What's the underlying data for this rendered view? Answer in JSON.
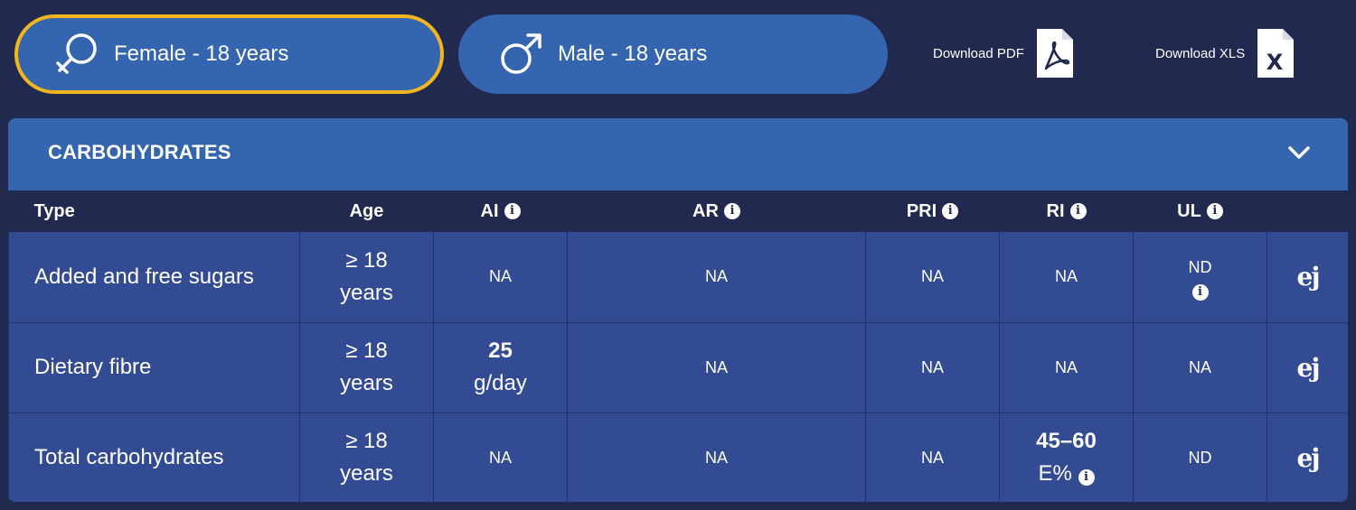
{
  "top": {
    "female_label": "Female - 18 years",
    "male_label": "Male - 18 years",
    "download_pdf": "Download PDF",
    "download_xls": "Download XLS",
    "xls_glyph": "X"
  },
  "panel": {
    "title": "CARBOHYDRATES",
    "expand_icon": "chevron-down-icon"
  },
  "table": {
    "headers": {
      "type": "Type",
      "age": "Age",
      "ai": "AI",
      "ar": "AR",
      "pri": "PRI",
      "ri": "RI",
      "ul": "UL"
    },
    "info_glyph": "i",
    "rows": [
      {
        "type": "Added and free sugars",
        "age_line1": "≥ 18",
        "age_line2": "years",
        "ai": "NA",
        "ar": "NA",
        "pri": "NA",
        "ri": "NA",
        "ul": "ND",
        "source": "ej"
      },
      {
        "type": "Dietary fibre",
        "age_line1": "≥ 18",
        "age_line2": "years",
        "ai_value": "25",
        "ai_unit": "g/day",
        "ar": "NA",
        "pri": "NA",
        "ri": "NA",
        "ul": "NA",
        "source": "ej"
      },
      {
        "type": "Total carbohydrates",
        "age_line1": "≥ 18",
        "age_line2": "years",
        "ai": "NA",
        "ar": "NA",
        "pri": "NA",
        "ri_value": "45–60",
        "ri_unit": "E%",
        "ul": "ND",
        "source": "ej"
      }
    ]
  },
  "colors": {
    "background": "#21294f",
    "button_blue": "#3565af",
    "row_blue": "#334b93",
    "selected_outline": "#f2b51e"
  }
}
